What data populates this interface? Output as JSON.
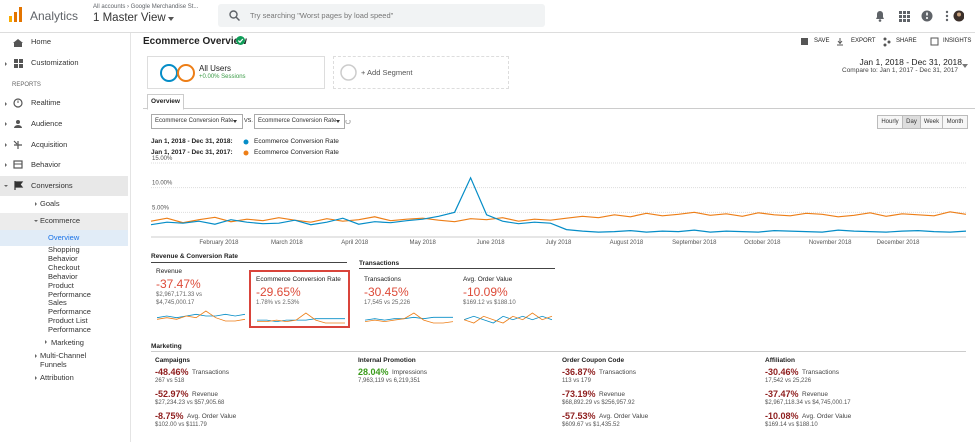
{
  "topbar": {
    "product": "Analytics",
    "breadcrumb": "All accounts › Google Merchandise St...",
    "view": "1 Master View",
    "search_placeholder": "Try searching \"Worst pages by load speed\""
  },
  "sidebar": {
    "items": [
      "Home",
      "Customization",
      "REPORTS",
      "Realtime",
      "Audience",
      "Acquisition",
      "Behavior",
      "Conversions",
      "Goals",
      "Ecommerce",
      "Overview",
      "Shopping Behavior",
      "Checkout Behavior",
      "Product Performance",
      "Sales Performance",
      "Product List Performance",
      "Marketing",
      "Multi-Channel Funnels",
      "Attribution"
    ]
  },
  "header": {
    "title": "Ecommerce Overview",
    "actions": [
      "SAVE",
      "EXPORT",
      "SHARE",
      "INSIGHTS"
    ]
  },
  "segments": {
    "name": "All Users",
    "detail": "+0.00% Sessions",
    "add": "+ Add Segment"
  },
  "date_range": {
    "range": "Jan 1, 2018 - Dec 31, 2018",
    "compare": "Compare to: Jan 1, 2017 - Dec 31, 2017"
  },
  "tab": "Overview",
  "metric_selectors": [
    "Ecommerce Conversion Rate",
    "VS.",
    "Ecommerce Conversion Rate"
  ],
  "granularity": [
    "Hourly",
    "Day",
    "Week",
    "Month"
  ],
  "chart_data": {
    "type": "line",
    "metric": "Ecommerce Conversion Rate",
    "x_labels": [
      "February 2018",
      "March 2018",
      "April 2018",
      "May 2018",
      "June 2018",
      "July 2018",
      "August 2018",
      "September 2018",
      "October 2018",
      "November 2018",
      "December 2018"
    ],
    "ylim": [
      0,
      16
    ],
    "yticks": [
      {
        "value": 5,
        "label": "5.00%"
      },
      {
        "value": 10,
        "label": "10.00%"
      },
      {
        "value": 15,
        "label": "15.00%"
      }
    ],
    "grid": true,
    "series": [
      {
        "name": "Jan 1, 2018 - Dec 31, 2018:",
        "color": "#058dc7",
        "values": [
          2.5,
          3,
          2.8,
          3.2,
          2.6,
          3.5,
          3,
          2.7,
          2.8,
          3.4,
          2.5,
          3,
          3.8,
          2.6,
          3.1,
          2.9,
          3.3,
          3.6,
          4.2,
          5,
          12,
          4.5,
          3.2,
          2.7,
          3,
          2.8,
          1.5,
          1.2,
          1,
          1.1,
          1.3,
          1,
          1.2,
          1.1,
          1.4,
          1,
          1.2,
          1.1,
          1,
          1.3,
          1.2,
          1.1,
          1,
          1.4,
          1.2,
          1.1,
          1,
          1.2,
          1.3,
          1.1,
          1,
          1.2
        ]
      },
      {
        "name": "Jan 1, 2017 - Dec 31, 2017:",
        "color": "#ed7e17",
        "values": [
          3.2,
          3.8,
          2.9,
          3.5,
          4,
          3.1,
          3.6,
          3.3,
          3.9,
          3.4,
          3,
          3.7,
          3.2,
          3.5,
          4.1,
          3.3,
          3.6,
          3.8,
          3.4,
          3.1,
          3.7,
          3.5,
          3.9,
          3.2,
          3.6,
          3.4,
          3.8,
          4.2,
          3.9,
          4.5,
          4.1,
          4.8,
          4.3,
          4.6,
          5,
          4.4,
          4.7,
          4.2,
          4.9,
          4.5,
          4.3,
          4.8,
          4.6,
          4.1,
          4.4,
          4.9,
          4.2,
          4.7,
          4.5,
          4.3,
          5.1,
          4.6
        ]
      }
    ]
  },
  "scorecards": {
    "groups": [
      "Revenue & Conversion Rate",
      "Transactions"
    ],
    "cards": [
      {
        "label": "Revenue",
        "change": "-37.47%",
        "detail": [
          "$2,967,171.33 vs",
          "$4,745,000.17"
        ],
        "sparkline": [
          [
            3,
            4,
            3,
            5,
            4,
            8,
            4,
            2,
            2,
            3
          ],
          [
            4,
            5,
            4,
            5,
            6,
            5,
            5,
            6,
            5,
            6
          ]
        ]
      },
      {
        "label": "Ecommerce Conversion Rate",
        "change": "-29.65%",
        "detail": [
          "1.78% vs 2.53%"
        ],
        "sparkline": [
          [
            3,
            3,
            4,
            3,
            4,
            9,
            4,
            2,
            2,
            2
          ],
          [
            4,
            4,
            3,
            4,
            4,
            4,
            5,
            5,
            5,
            5
          ]
        ]
      },
      {
        "label": "Transactions",
        "change": "-30.45%",
        "detail": [
          "17,545 vs 25,226"
        ],
        "sparkline": [
          [
            3,
            4,
            3,
            4,
            5,
            9,
            4,
            2,
            2,
            3
          ],
          [
            4,
            5,
            4,
            5,
            5,
            6,
            5,
            6,
            6,
            6
          ]
        ]
      },
      {
        "label": "Avg. Order Value",
        "change": "-10.09%",
        "detail": [
          "$169.12 vs $188.10"
        ],
        "sparkline": [
          [
            5,
            4,
            6,
            5,
            4,
            6,
            5,
            7,
            5,
            6
          ],
          [
            5,
            6,
            5,
            4,
            6,
            5,
            6,
            5,
            6,
            5
          ]
        ]
      }
    ]
  },
  "marketing": {
    "title": "Marketing",
    "columns": [
      {
        "title": "Campaigns",
        "rows": [
          {
            "change": "-48.46%",
            "metric": "Transactions",
            "detail": "267 vs 518"
          },
          {
            "change": "-52.97%",
            "metric": "Revenue",
            "detail": "$27,234.23 vs $57,905.68"
          },
          {
            "change": "-8.75%",
            "metric": "Avg. Order Value",
            "detail": "$102.00 vs $111.79"
          }
        ]
      },
      {
        "title": "Internal Promotion",
        "rows": [
          {
            "change": "28.04%",
            "metric": "Impressions",
            "detail": "7,963,119 vs 6,219,351"
          }
        ]
      },
      {
        "title": "Order Coupon Code",
        "rows": [
          {
            "change": "-36.87%",
            "metric": "Transactions",
            "detail": "113 vs 179"
          },
          {
            "change": "-73.19%",
            "metric": "Revenue",
            "detail": "$68,892.29 vs $256,957.92"
          },
          {
            "change": "-57.53%",
            "metric": "Avg. Order Value",
            "detail": "$609.67 vs $1,435.52"
          }
        ]
      },
      {
        "title": "Affiliation",
        "rows": [
          {
            "change": "-30.46%",
            "metric": "Transactions",
            "detail": "17,542 vs 25,226"
          },
          {
            "change": "-37.47%",
            "metric": "Revenue",
            "detail": "$2,967,118.34 vs $4,745,000.17"
          },
          {
            "change": "-10.08%",
            "metric": "Avg. Order Value",
            "detail": "$169.14 vs $188.10"
          }
        ]
      }
    ]
  }
}
